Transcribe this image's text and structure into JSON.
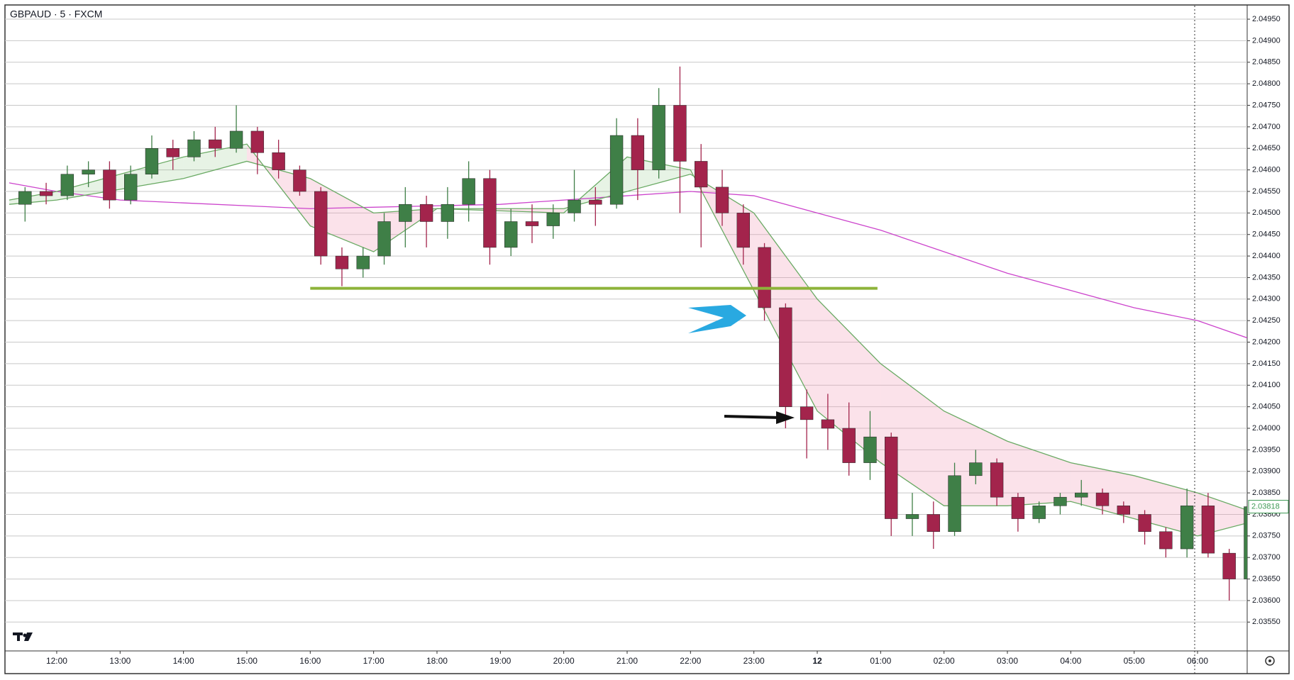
{
  "chart_data": {
    "type": "candlestick",
    "title": "GBPAUD · 5 · FXCM",
    "up_color": "#3f7f47",
    "down_color": "#a3244c",
    "grid": true,
    "xlim": [
      -49,
      1127
    ],
    "ylim": [
      2.03483,
      2.04983
    ],
    "xticks": [
      {
        "value": 0,
        "label": "12:00"
      },
      {
        "value": 60,
        "label": "13:00"
      },
      {
        "value": 120,
        "label": "14:00"
      },
      {
        "value": 180,
        "label": "15:00"
      },
      {
        "value": 240,
        "label": "16:00"
      },
      {
        "value": 300,
        "label": "17:00"
      },
      {
        "value": 360,
        "label": "18:00"
      },
      {
        "value": 420,
        "label": "19:00"
      },
      {
        "value": 480,
        "label": "20:00"
      },
      {
        "value": 540,
        "label": "21:00"
      },
      {
        "value": 600,
        "label": "22:00"
      },
      {
        "value": 660,
        "label": "23:00"
      },
      {
        "value": 720,
        "label": "12"
      },
      {
        "value": 780,
        "label": "01:00"
      },
      {
        "value": 840,
        "label": "02:00"
      },
      {
        "value": 900,
        "label": "03:00"
      },
      {
        "value": 960,
        "label": "04:00"
      },
      {
        "value": 1020,
        "label": "05:00"
      },
      {
        "value": 1080,
        "label": "06:00"
      }
    ],
    "yticks": [
      {
        "value": 2.0355,
        "label": "2.03550"
      },
      {
        "value": 2.036,
        "label": "2.03600"
      },
      {
        "value": 2.0365,
        "label": "2.03650"
      },
      {
        "value": 2.037,
        "label": "2.03700"
      },
      {
        "value": 2.0375,
        "label": "2.03750"
      },
      {
        "value": 2.038,
        "label": "2.03800"
      },
      {
        "value": 2.0385,
        "label": "2.03850"
      },
      {
        "value": 2.039,
        "label": "2.03900"
      },
      {
        "value": 2.0395,
        "label": "2.03950"
      },
      {
        "value": 2.04,
        "label": "2.04000"
      },
      {
        "value": 2.0405,
        "label": "2.04050"
      },
      {
        "value": 2.041,
        "label": "2.04100"
      },
      {
        "value": 2.0415,
        "label": "2.04150"
      },
      {
        "value": 2.042,
        "label": "2.04200"
      },
      {
        "value": 2.0425,
        "label": "2.04250"
      },
      {
        "value": 2.043,
        "label": "2.04300"
      },
      {
        "value": 2.0435,
        "label": "2.04350"
      },
      {
        "value": 2.044,
        "label": "2.04400"
      },
      {
        "value": 2.0445,
        "label": "2.04450"
      },
      {
        "value": 2.045,
        "label": "2.04500"
      },
      {
        "value": 2.0455,
        "label": "2.04550"
      },
      {
        "value": 2.046,
        "label": "2.04600"
      },
      {
        "value": 2.0465,
        "label": "2.04650"
      },
      {
        "value": 2.047,
        "label": "2.04700"
      },
      {
        "value": 2.0475,
        "label": "2.04750"
      },
      {
        "value": 2.048,
        "label": "2.04800"
      },
      {
        "value": 2.0485,
        "label": "2.04850"
      },
      {
        "value": 2.049,
        "label": "2.04900"
      },
      {
        "value": 2.0495,
        "label": "2.04950"
      }
    ],
    "x": [
      -30,
      -10,
      10,
      30,
      50,
      70,
      90,
      110,
      130,
      150,
      170,
      190,
      210,
      230,
      250,
      270,
      290,
      310,
      330,
      350,
      370,
      390,
      410,
      430,
      450,
      470,
      490,
      510,
      530,
      550,
      570,
      590,
      610,
      630,
      650,
      670,
      690,
      710,
      730,
      750,
      770,
      790,
      810,
      830,
      850,
      870,
      890,
      910,
      930,
      950,
      970,
      990,
      1010,
      1030,
      1050,
      1070,
      1090,
      1110,
      1130
    ],
    "candles": [
      [
        2.0452,
        2.0456,
        2.0448,
        2.0455
      ],
      [
        2.0455,
        2.0457,
        2.0452,
        2.0454
      ],
      [
        2.0454,
        2.0461,
        2.0453,
        2.0459
      ],
      [
        2.0459,
        2.0462,
        2.0456,
        2.046
      ],
      [
        2.046,
        2.0462,
        2.0451,
        2.0453
      ],
      [
        2.0453,
        2.0461,
        2.0452,
        2.0459
      ],
      [
        2.0459,
        2.0468,
        2.0458,
        2.0465
      ],
      [
        2.0465,
        2.0467,
        2.046,
        2.0463
      ],
      [
        2.0463,
        2.0469,
        2.0462,
        2.0467
      ],
      [
        2.0467,
        2.047,
        2.0463,
        2.0465
      ],
      [
        2.0465,
        2.0475,
        2.0464,
        2.0469
      ],
      [
        2.0469,
        2.047,
        2.0459,
        2.0464
      ],
      [
        2.0464,
        2.0467,
        2.0458,
        2.046
      ],
      [
        2.046,
        2.0461,
        2.0454,
        2.0455
      ],
      [
        2.0455,
        2.0456,
        2.0438,
        2.044
      ],
      [
        2.044,
        2.0442,
        2.0433,
        2.0437
      ],
      [
        2.0437,
        2.0442,
        2.0435,
        2.044
      ],
      [
        2.044,
        2.045,
        2.0438,
        2.0448
      ],
      [
        2.0448,
        2.0456,
        2.0442,
        2.0452
      ],
      [
        2.0452,
        2.0454,
        2.0442,
        2.0448
      ],
      [
        2.0448,
        2.0456,
        2.0444,
        2.0452
      ],
      [
        2.0452,
        2.0462,
        2.0448,
        2.0458
      ],
      [
        2.0458,
        2.046,
        2.0438,
        2.0442
      ],
      [
        2.0442,
        2.0451,
        2.044,
        2.0448
      ],
      [
        2.0448,
        2.0452,
        2.0443,
        2.0447
      ],
      [
        2.0447,
        2.0452,
        2.0444,
        2.045
      ],
      [
        2.045,
        2.046,
        2.0448,
        2.0453
      ],
      [
        2.0453,
        2.0456,
        2.0447,
        2.0452
      ],
      [
        2.0452,
        2.0472,
        2.0451,
        2.0468
      ],
      [
        2.0468,
        2.0472,
        2.0453,
        2.046
      ],
      [
        2.046,
        2.0479,
        2.0458,
        2.0475
      ],
      [
        2.0475,
        2.0484,
        2.045,
        2.0462
      ],
      [
        2.0462,
        2.0466,
        2.0442,
        2.0456
      ],
      [
        2.0456,
        2.046,
        2.0447,
        2.045
      ],
      [
        2.045,
        2.0452,
        2.0438,
        2.0442
      ],
      [
        2.0442,
        2.0443,
        2.0425,
        2.0428
      ],
      [
        2.0428,
        2.0429,
        2.04,
        2.0405
      ],
      [
        2.0405,
        2.0409,
        2.0393,
        2.0402
      ],
      [
        2.0402,
        2.0408,
        2.0395,
        2.04
      ],
      [
        2.04,
        2.0406,
        2.0389,
        2.0392
      ],
      [
        2.0392,
        2.0404,
        2.0388,
        2.0398
      ],
      [
        2.0398,
        2.0399,
        2.0375,
        2.0379
      ],
      [
        2.0379,
        2.0385,
        2.0375,
        2.038
      ],
      [
        2.038,
        2.0383,
        2.0372,
        2.0376
      ],
      [
        2.0376,
        2.0392,
        2.0375,
        2.0389
      ],
      [
        2.0389,
        2.0395,
        2.0387,
        2.0392
      ],
      [
        2.0392,
        2.0393,
        2.0382,
        2.0384
      ],
      [
        2.0384,
        2.0385,
        2.0376,
        2.0379
      ],
      [
        2.0379,
        2.0383,
        2.0378,
        2.0382
      ],
      [
        2.0382,
        2.0385,
        2.038,
        2.0384
      ],
      [
        2.0384,
        2.0388,
        2.0382,
        2.0385
      ],
      [
        2.0385,
        2.0386,
        2.038,
        2.0382
      ],
      [
        2.0382,
        2.0383,
        2.0378,
        2.038
      ],
      [
        2.038,
        2.0381,
        2.0373,
        2.0376
      ],
      [
        2.0376,
        2.0377,
        2.037,
        2.0372
      ],
      [
        2.0372,
        2.0386,
        2.037,
        2.0382
      ],
      [
        2.0382,
        2.0385,
        2.037,
        2.0371
      ],
      [
        2.0371,
        2.0372,
        2.036,
        2.0365
      ],
      [
        2.0365,
        2.0387,
        2.0364,
        2.03818
      ]
    ],
    "overlays": [
      {
        "color": "#cc44cc",
        "x": [
          -45,
          0,
          60,
          240,
          420,
          540,
          600,
          660,
          720,
          780,
          840,
          900,
          960,
          1020,
          1080,
          1127
        ],
        "values": [
          2.0457,
          2.0455,
          2.0453,
          2.0451,
          2.0452,
          2.0454,
          2.0455,
          2.0454,
          2.045,
          2.0446,
          2.0441,
          2.0436,
          2.0432,
          2.0428,
          2.0425,
          2.0421
        ]
      },
      {
        "color": "#6aaa64",
        "x": [
          -45,
          0,
          120,
          180,
          240,
          300,
          360,
          480,
          540,
          600,
          660,
          720,
          780,
          840,
          900,
          960,
          1020,
          1080,
          1127
        ],
        "values": [
          2.0452,
          2.0453,
          2.0458,
          2.0462,
          2.0458,
          2.045,
          2.0451,
          2.0451,
          2.0455,
          2.0459,
          2.045,
          2.043,
          2.0415,
          2.0404,
          2.0397,
          2.0392,
          2.0389,
          2.0385,
          2.0381
        ]
      },
      {
        "color": "#6aaa64",
        "x": [
          -45,
          0,
          120,
          180,
          240,
          300,
          360,
          480,
          540,
          600,
          660,
          720,
          780,
          840,
          900,
          960,
          1020,
          1080,
          1127
        ],
        "values": [
          2.0453,
          2.0455,
          2.0463,
          2.0466,
          2.0447,
          2.0441,
          2.0451,
          2.045,
          2.0463,
          2.046,
          2.0432,
          2.0404,
          2.0392,
          2.0382,
          2.0382,
          2.0383,
          2.0379,
          2.0375,
          2.0378
        ]
      }
    ],
    "band_up_color": "rgba(120,190,110,0.18)",
    "band_down_color": "rgba(240,150,180,0.28)",
    "levels": [
      {
        "value": 2.04325,
        "from": 240,
        "to": 777,
        "color": "#8db33a"
      }
    ],
    "last_price_color": "#3f9a55"
  }
}
